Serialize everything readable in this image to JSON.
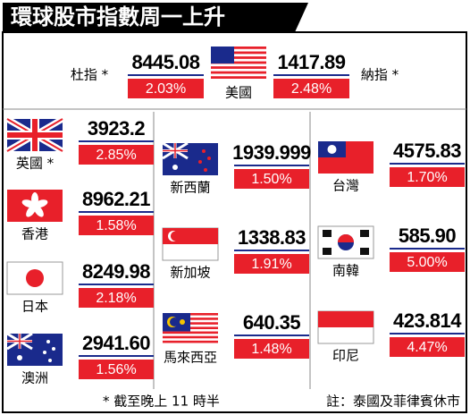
{
  "title": "環球股市指數周一上升",
  "us": {
    "country": "美國",
    "dow": {
      "label": "杜指 *",
      "value": "8445.08",
      "change": "2.03%"
    },
    "nasdaq": {
      "label": "納指 *",
      "value": "1417.89",
      "change": "2.48%"
    }
  },
  "markets": [
    {
      "name": "英國 *",
      "value": "3923.2",
      "change": "2.85%"
    },
    {
      "name": "香港",
      "value": "8962.21",
      "change": "1.58%"
    },
    {
      "name": "日本",
      "value": "8249.98",
      "change": "2.18%"
    },
    {
      "name": "澳洲",
      "value": "2941.60",
      "change": "1.56%"
    },
    {
      "name": "新西蘭",
      "value": "1939.999",
      "change": "1.50%"
    },
    {
      "name": "新加坡",
      "value": "1338.83",
      "change": "1.91%"
    },
    {
      "name": "馬來西亞",
      "value": "640.35",
      "change": "1.48%"
    },
    {
      "name": "台灣",
      "value": "4575.83",
      "change": "1.70%"
    },
    {
      "name": "南韓",
      "value": "585.90",
      "change": "5.00%"
    },
    {
      "name": "印尼",
      "value": "423.814",
      "change": "4.47%"
    }
  ],
  "footnotes": [
    "* 截至晚上 11 時半",
    "註：泰國及菲律賓休市"
  ]
}
